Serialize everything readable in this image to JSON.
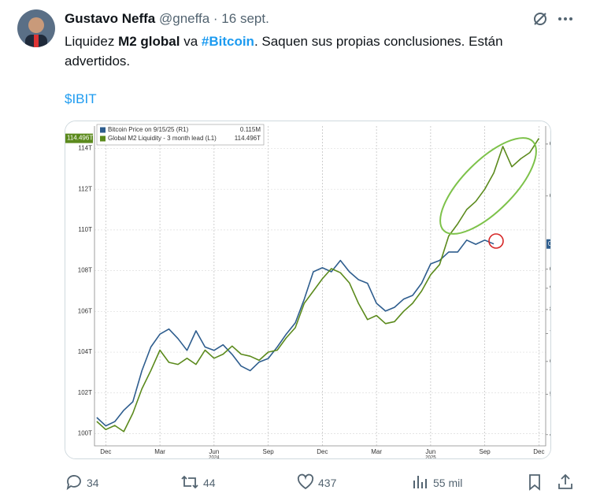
{
  "author": {
    "name": "Gustavo Neffa",
    "handle_date": "@gneffa · 16 sept."
  },
  "text": [
    "Liquidez ",
    "M2 global",
    " va ",
    "#Bitcoin",
    ". Saquen sus propias conclusiones. Están advertidos."
  ],
  "cashtag": "$IBIT",
  "actions": {
    "replies": 34,
    "reposts": 44,
    "likes": 437,
    "views": "55 mil"
  },
  "chart_data": {
    "type": "line",
    "categories": [
      null,
      "Dec",
      null,
      null,
      null,
      null,
      null,
      "Mar",
      null,
      null,
      null,
      null,
      null,
      "Jun",
      null,
      null,
      null,
      null,
      null,
      "Sep",
      null,
      null,
      null,
      null,
      null,
      "Dec",
      null,
      null,
      null,
      null,
      null,
      "Mar",
      null,
      null,
      null,
      null,
      null,
      "Jun",
      null,
      null,
      null,
      null,
      null,
      "Sep",
      null,
      null,
      null,
      null,
      null,
      "Dec"
    ],
    "category_years": [
      null,
      null,
      null,
      null,
      null,
      null,
      null,
      null,
      null,
      null,
      null,
      null,
      null,
      "2024",
      null,
      null,
      null,
      null,
      null,
      null,
      null,
      null,
      null,
      null,
      null,
      null,
      null,
      null,
      null,
      null,
      null,
      null,
      null,
      null,
      null,
      null,
      null,
      "2025",
      null,
      null,
      null,
      null,
      null,
      null,
      null,
      null,
      null,
      null,
      null,
      null
    ],
    "ylim": [
      99.4,
      115.1
    ],
    "yticks": [
      {
        "value": 100,
        "label": "100T"
      },
      {
        "value": 102,
        "label": "102T"
      },
      {
        "value": 104,
        "label": "104T"
      },
      {
        "value": 106,
        "label": "106T"
      },
      {
        "value": 108,
        "label": "108T"
      },
      {
        "value": 110,
        "label": "110T"
      },
      {
        "value": 112,
        "label": "112T"
      },
      {
        "value": 114,
        "label": "114T"
      }
    ],
    "y2lim": [
      37600,
      221000
    ],
    "y2_log": true,
    "y2ticks": [
      {
        "value": 200000,
        "label": "0.2M"
      },
      {
        "value": 150000,
        "label": "0.15M"
      },
      {
        "value": 100000,
        "label": "0.1M"
      },
      90000,
      80000,
      70000,
      60000,
      50000,
      40000
    ],
    "grid": true,
    "series": [
      {
        "name": "Bitcoin Price on 9/15/25 (R1)",
        "color": "#2e5d8e",
        "axis": "y2",
        "last_label": "0.115M",
        "values": [
          44000,
          42000,
          43000,
          45800,
          48000,
          57000,
          65000,
          69800,
          71800,
          68100,
          63800,
          71100,
          65000,
          63800,
          65800,
          62400,
          58500,
          57000,
          59800,
          61000,
          65000,
          69800,
          74300,
          84700,
          98600,
          100800,
          98600,
          105000,
          98600,
          94400,
          92500,
          82800,
          79300,
          81000,
          84700,
          86500,
          92500,
          103000,
          105000,
          110000,
          110000,
          117500,
          114800,
          117500,
          115000,
          null,
          null,
          null,
          null,
          null
        ]
      },
      {
        "name": "Global M2 Liquidity - 3 month lead (L1)",
        "color": "#5b8a1c",
        "axis": "y",
        "last_label": "114.496T",
        "values": [
          100.6,
          100.2,
          100.4,
          100.1,
          101.0,
          102.2,
          103.1,
          104.1,
          103.5,
          103.4,
          103.7,
          103.4,
          104.1,
          103.7,
          103.9,
          104.3,
          103.9,
          103.8,
          103.6,
          104.0,
          104.1,
          104.7,
          105.2,
          106.4,
          107.0,
          107.6,
          108.1,
          107.9,
          107.4,
          106.4,
          105.6,
          105.8,
          105.4,
          105.5,
          106.0,
          106.4,
          107.0,
          107.8,
          108.3,
          109.7,
          110.3,
          111.0,
          111.4,
          112.0,
          112.8,
          114.1,
          113.1,
          113.5,
          113.8,
          114.496
        ]
      }
    ]
  }
}
